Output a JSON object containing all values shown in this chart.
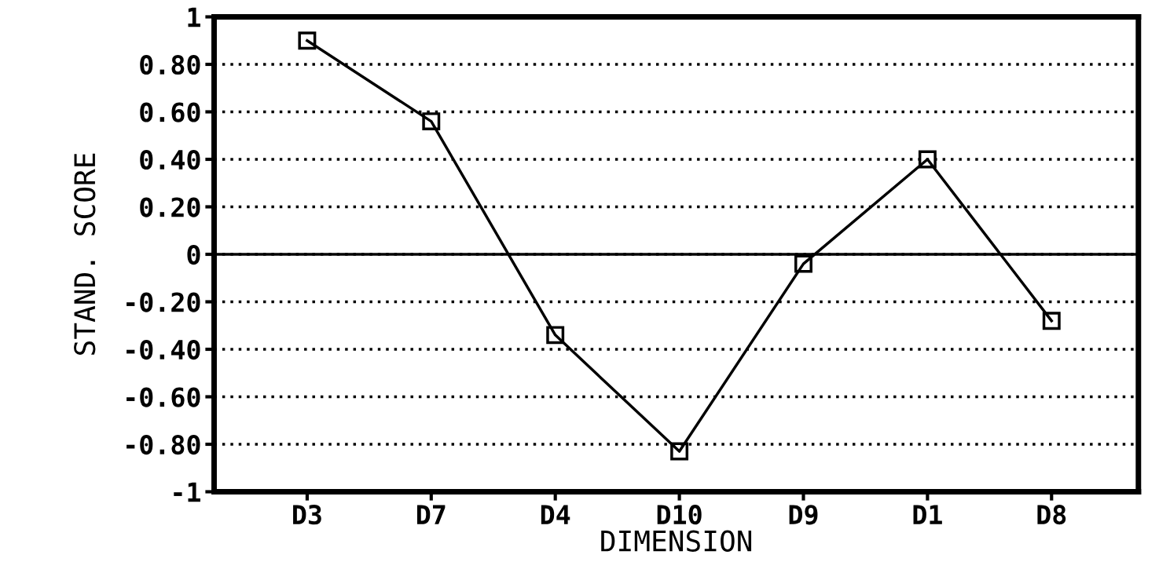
{
  "chart_data": {
    "type": "line",
    "xlabel": "DIMENSION",
    "ylabel": "STAND. SCORE",
    "categories": [
      "D3",
      "D7",
      "D4",
      "D10",
      "D9",
      "D1",
      "D8"
    ],
    "series": [
      {
        "color": "#000000",
        "values": [
          0.9,
          0.56,
          -0.34,
          -0.83,
          -0.04,
          0.4,
          -0.28
        ]
      }
    ],
    "ylim": [
      -1,
      1
    ],
    "yticks": [
      {
        "value": -1,
        "label": "-1"
      },
      {
        "value": -0.8,
        "label": "-0.80"
      },
      {
        "value": -0.6,
        "label": "-0.60"
      },
      {
        "value": -0.4,
        "label": "-0.40"
      },
      {
        "value": -0.2,
        "label": "-0.20"
      },
      {
        "value": 0,
        "label": "0"
      },
      {
        "value": 0.2,
        "label": "0.20"
      },
      {
        "value": 0.4,
        "label": "0.40"
      },
      {
        "value": 0.6,
        "label": "0.60"
      },
      {
        "value": 0.8,
        "label": "0.80"
      },
      {
        "value": 1,
        "label": "1"
      }
    ],
    "grid": "y",
    "marker": "square",
    "line_style": "solid",
    "ref_lines": [
      {
        "axis": "y",
        "value": 0,
        "color": "#000000",
        "line_style": "solid"
      }
    ]
  }
}
